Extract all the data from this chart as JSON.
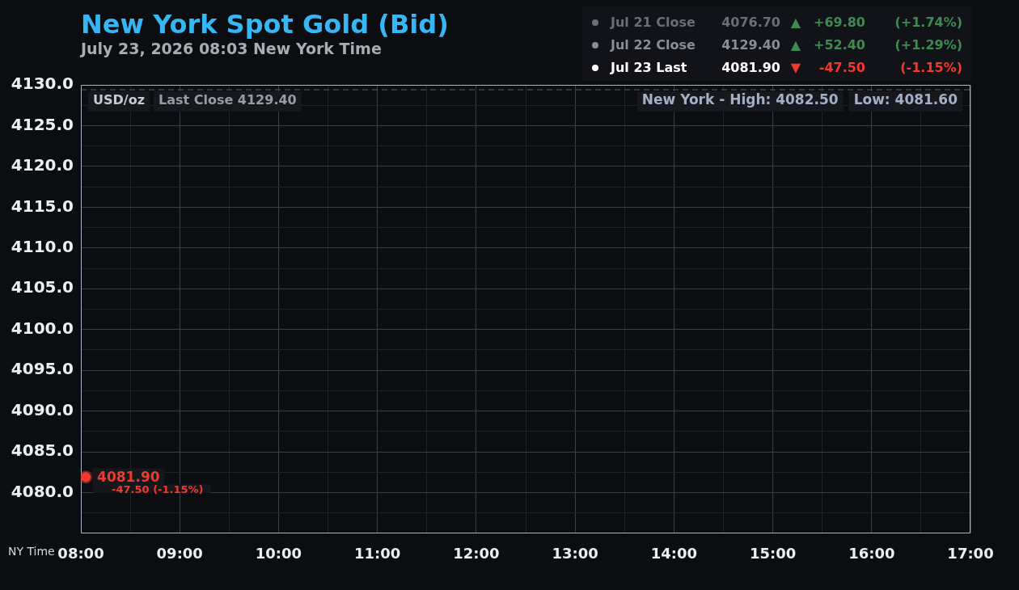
{
  "chart_data": {
    "type": "line",
    "title": "New York Spot Gold (Bid)",
    "subtitle": "July 23, 2026 08:03 New York Time",
    "xlabel": "NY Time",
    "ylabel": "USD/oz",
    "x": [
      8.05
    ],
    "series": [
      {
        "color": "#f23a2c",
        "values": [
          4081.9
        ],
        "value_labels": [
          "4081.90"
        ]
      }
    ],
    "xlim": [
      8,
      17
    ],
    "xticks": [
      {
        "value": 8,
        "label": "08:00"
      },
      {
        "value": 8.5,
        "label": null
      },
      {
        "value": 9,
        "label": "09:00"
      },
      {
        "value": 9.5,
        "label": null
      },
      {
        "value": 10,
        "label": "10:00"
      },
      {
        "value": 10.5,
        "label": null
      },
      {
        "value": 11,
        "label": "11:00"
      },
      {
        "value": 11.5,
        "label": null
      },
      {
        "value": 12,
        "label": "12:00"
      },
      {
        "value": 12.5,
        "label": null
      },
      {
        "value": 13,
        "label": "13:00"
      },
      {
        "value": 13.5,
        "label": null
      },
      {
        "value": 14,
        "label": "14:00"
      },
      {
        "value": 14.5,
        "label": null
      },
      {
        "value": 15,
        "label": "15:00"
      },
      {
        "value": 15.5,
        "label": null
      },
      {
        "value": 16,
        "label": "16:00"
      },
      {
        "value": 16.5,
        "label": null
      },
      {
        "value": 17,
        "label": "17:00"
      }
    ],
    "ylim": [
      4075,
      4130
    ],
    "yticks": [
      {
        "value": 4077.5,
        "label": null
      },
      {
        "value": 4080,
        "label": "4080.0"
      },
      {
        "value": 4082.5,
        "label": null
      },
      {
        "value": 4085,
        "label": "4085.0"
      },
      {
        "value": 4087.5,
        "label": null
      },
      {
        "value": 4090,
        "label": "4090.0"
      },
      {
        "value": 4092.5,
        "label": null
      },
      {
        "value": 4095,
        "label": "4095.0"
      },
      {
        "value": 4097.5,
        "label": null
      },
      {
        "value": 4100,
        "label": "4100.0"
      },
      {
        "value": 4102.5,
        "label": null
      },
      {
        "value": 4105,
        "label": "4105.0"
      },
      {
        "value": 4107.5,
        "label": null
      },
      {
        "value": 4110,
        "label": "4110.0"
      },
      {
        "value": 4112.5,
        "label": null
      },
      {
        "value": 4115,
        "label": "4115.0"
      },
      {
        "value": 4117.5,
        "label": null
      },
      {
        "value": 4120,
        "label": "4120.0"
      },
      {
        "value": 4122.5,
        "label": null
      },
      {
        "value": 4125,
        "label": "4125.0"
      },
      {
        "value": 4127.5,
        "label": null
      },
      {
        "value": 4130,
        "label": "4130.0"
      }
    ],
    "grid": true,
    "marker": "circle",
    "ref_lines": [
      {
        "axis": "y",
        "value": 4129.4,
        "label": "Last Close 4129.40",
        "color": "#5c606a",
        "line_style": "dashed"
      }
    ],
    "annotations": [
      {
        "text": "-47.50 (-1.15%)",
        "x": 8.05,
        "y": 4081.9
      },
      "New York - High: 4082.50",
      "Low: 4081.60",
      "Jul 21 Close",
      "4076.70",
      "▲",
      "+69.80",
      "(+1.74%)",
      "Jul 22 Close",
      "4129.40",
      "▲",
      "+52.40",
      "(+1.29%)",
      "Jul 23 Last",
      "4081.90",
      "▼",
      "-47.50",
      "(-1.15%)"
    ]
  }
}
